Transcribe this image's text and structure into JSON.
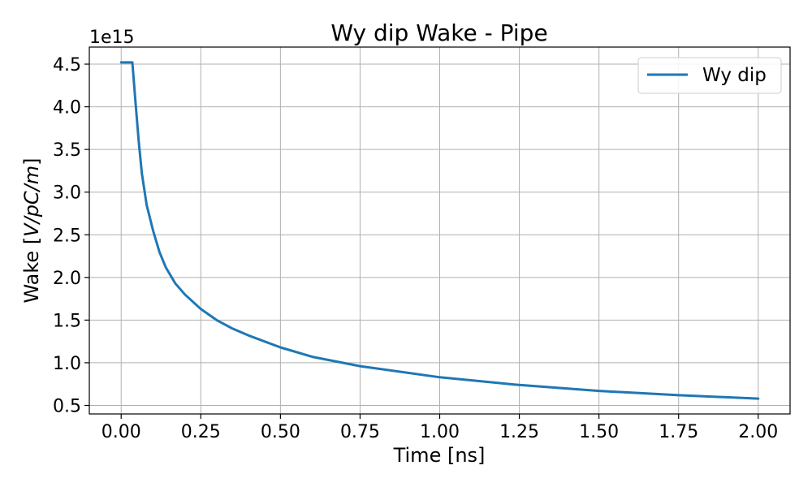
{
  "chart_data": {
    "type": "line",
    "title": "Wy dip Wake - Pipe",
    "xlabel": "Time [ns]",
    "ylabel_prefix": "Wake [",
    "ylabel_math": "V/pC/m",
    "ylabel_suffix": "]",
    "offset_text": "1e15",
    "xlim": [
      -0.1,
      2.1
    ],
    "ylim": [
      0.4,
      4.7
    ],
    "x_ticks": [
      0.0,
      0.25,
      0.5,
      0.75,
      1.0,
      1.25,
      1.5,
      1.75,
      2.0
    ],
    "x_tick_labels": [
      "0.00",
      "0.25",
      "0.50",
      "0.75",
      "1.00",
      "1.25",
      "1.50",
      "1.75",
      "2.00"
    ],
    "y_ticks": [
      0.5,
      1.0,
      1.5,
      2.0,
      2.5,
      3.0,
      3.5,
      4.0,
      4.5
    ],
    "y_tick_labels": [
      "0.5",
      "1.0",
      "1.5",
      "2.0",
      "2.5",
      "3.0",
      "3.5",
      "4.0",
      "4.5"
    ],
    "grid": true,
    "legend_position": "top-right",
    "series": [
      {
        "name": "Wy dip",
        "color": "#1f77b4",
        "x": [
          0.0,
          0.035,
          0.045,
          0.055,
          0.065,
          0.08,
          0.1,
          0.12,
          0.14,
          0.17,
          0.2,
          0.25,
          0.3,
          0.35,
          0.4,
          0.5,
          0.6,
          0.75,
          1.0,
          1.25,
          1.5,
          1.75,
          2.0
        ],
        "y": [
          4.52,
          4.52,
          4.05,
          3.6,
          3.22,
          2.85,
          2.55,
          2.3,
          2.12,
          1.93,
          1.8,
          1.63,
          1.5,
          1.4,
          1.32,
          1.18,
          1.07,
          0.96,
          0.83,
          0.74,
          0.67,
          0.62,
          0.58
        ]
      }
    ]
  }
}
